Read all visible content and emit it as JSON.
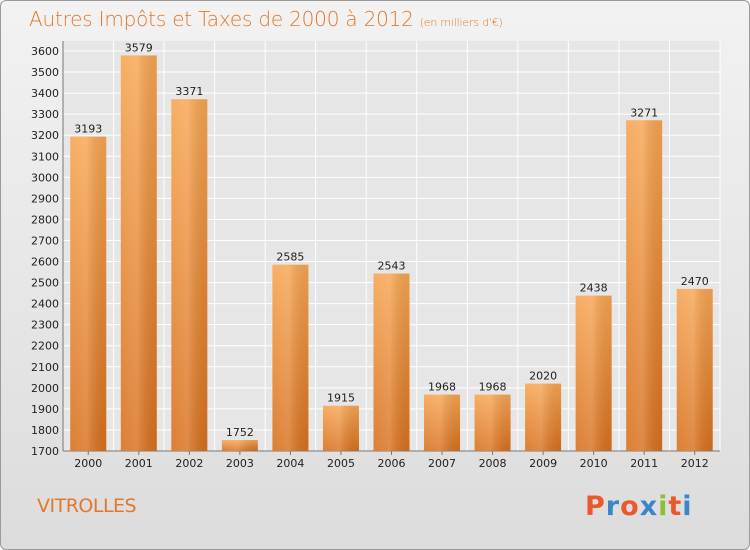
{
  "chart_data": {
    "type": "bar",
    "title": "Autres Impôts et Taxes de 2000 à 2012",
    "subtitle": "(en milliers d'€)",
    "categories": [
      "2000",
      "2001",
      "2002",
      "2003",
      "2004",
      "2005",
      "2006",
      "2007",
      "2008",
      "2009",
      "2010",
      "2011",
      "2012"
    ],
    "values": [
      3193,
      3579,
      3371,
      1752,
      2585,
      1915,
      2543,
      1968,
      1968,
      2020,
      2438,
      3271,
      2470
    ],
    "ylim": [
      1700,
      3600
    ],
    "ytick_step": 100,
    "grid": true,
    "bar_color": "#f0923a",
    "xlabel": "",
    "ylabel": ""
  },
  "footer": {
    "commune": "VITROLLES",
    "brand": "Proxiti",
    "brand_colors": [
      "#e9592b",
      "#3a86c8",
      "#e9592b",
      "#3a86c8",
      "#8bbf3a",
      "#e9592b",
      "#3a86c8"
    ]
  }
}
